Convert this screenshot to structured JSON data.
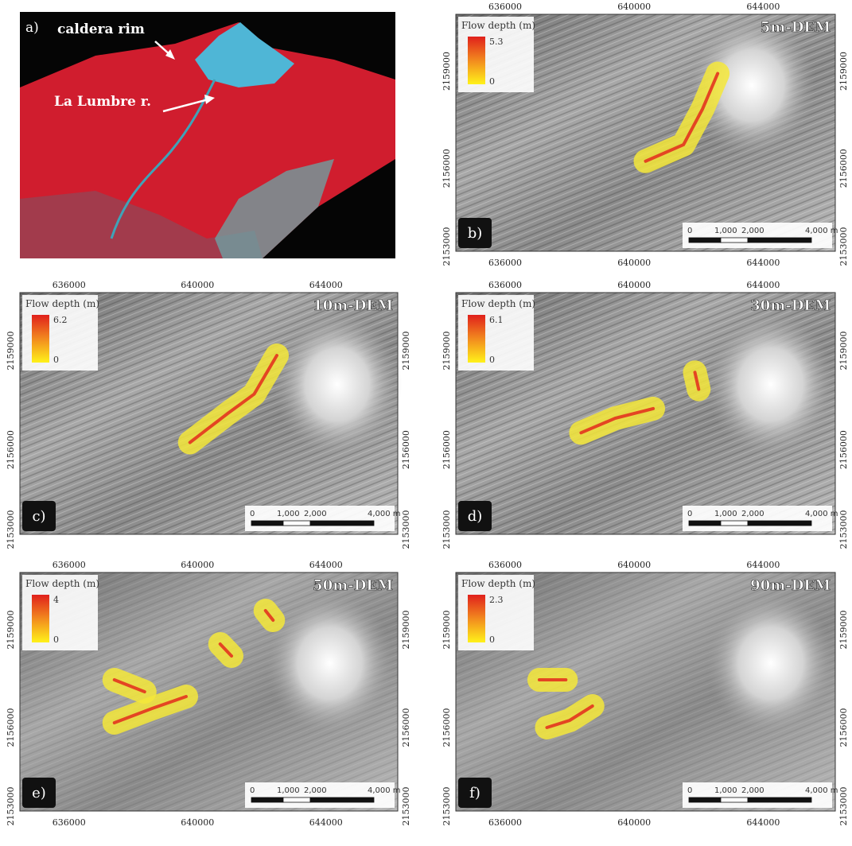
{
  "panel_a": {
    "label": "a)",
    "annotations": [
      "caldera rim",
      "La Lumbre r."
    ]
  },
  "panels": [
    {
      "label": "b)",
      "dem": "5m-DEM",
      "legend": {
        "title": "Flow depth (m)",
        "max": "5.3",
        "min": "0"
      },
      "scale_bar": [
        "0",
        "1,000",
        "2,000",
        "4,000 m"
      ],
      "x_ticks_top": [
        "636000",
        "640000",
        "644000"
      ],
      "x_ticks_bottom": [
        "636000",
        "640000",
        "644000"
      ],
      "y_ticks_left": [
        "2159000",
        "2156000",
        "2153000"
      ],
      "y_ticks_right": [
        "2159000",
        "2156000",
        "2153000"
      ]
    },
    {
      "label": "c)",
      "dem": "10m-DEM",
      "legend": {
        "title": "Flow depth (m)",
        "max": "6.2",
        "min": "0"
      },
      "scale_bar": [
        "0",
        "1,000",
        "2,000",
        "4,000 m"
      ],
      "x_ticks_top": [
        "636000",
        "640000",
        "644000"
      ],
      "y_ticks_left": [
        "2159000",
        "2156000",
        "2153000"
      ],
      "y_ticks_right": [
        "2159000",
        "2156000",
        "2153000"
      ]
    },
    {
      "label": "d)",
      "dem": "30m-DEM",
      "legend": {
        "title": "Flow depth (m)",
        "max": "6.1",
        "min": "0"
      },
      "scale_bar": [
        "0",
        "1,000",
        "2,000",
        "4,000 m"
      ],
      "x_ticks_top": [
        "636000",
        "640000",
        "644000"
      ],
      "y_ticks_left": [
        "2159000",
        "2156000",
        "2153000"
      ],
      "y_ticks_right": [
        "2159000",
        "2156000",
        "2153000"
      ]
    },
    {
      "label": "e)",
      "dem": "50m-DEM",
      "legend": {
        "title": "Flow depth (m)",
        "max": "4",
        "min": "0"
      },
      "scale_bar": [
        "0",
        "1,000",
        "2,000",
        "4,000 m"
      ],
      "x_ticks_top": [
        "636000",
        "640000",
        "644000"
      ],
      "x_ticks_bottom": [
        "636000",
        "640000",
        "644000"
      ],
      "y_ticks_left": [
        "2159000",
        "2156000",
        "2153000"
      ],
      "y_ticks_right": [
        "2159000",
        "2156000",
        "2153000"
      ]
    },
    {
      "label": "f)",
      "dem": "90m-DEM",
      "legend": {
        "title": "Flow depth (m)",
        "max": "2.3",
        "min": "0"
      },
      "scale_bar": [
        "0",
        "1,000",
        "2,000",
        "4,000 m"
      ],
      "x_ticks_top": [
        "636000",
        "640000",
        "644000"
      ],
      "x_ticks_bottom": [
        "636000",
        "640000",
        "644000"
      ],
      "y_ticks_left": [
        "2159000",
        "2156000",
        "2153000"
      ],
      "y_ticks_right": [
        "2159000",
        "2156000",
        "2153000"
      ]
    }
  ]
}
